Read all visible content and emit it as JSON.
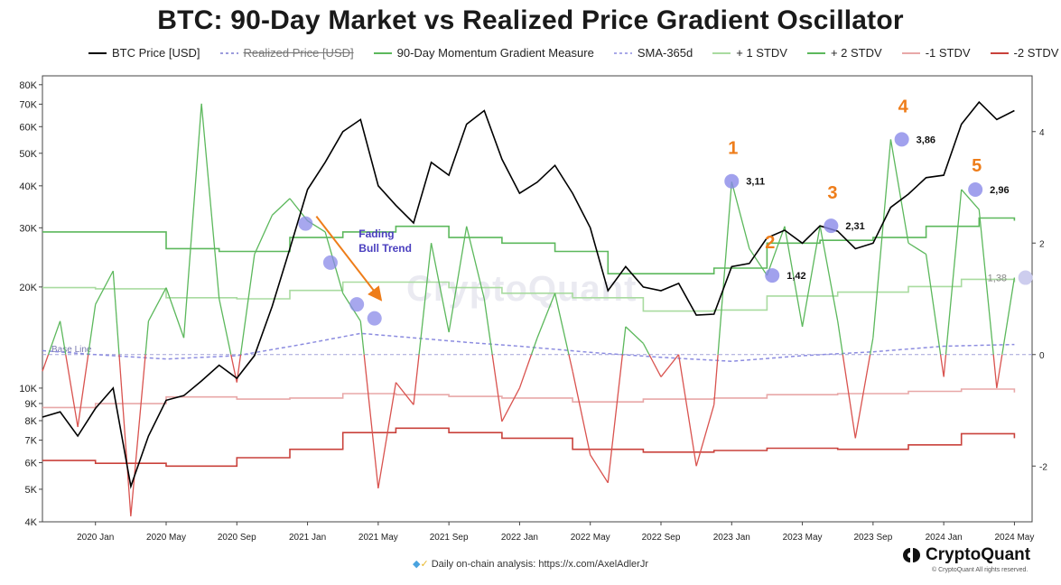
{
  "chart_data": {
    "type": "line",
    "title": "BTC: 90-Day Market vs Realized Price Gradient Oscillator",
    "legend": [
      {
        "name": "BTC Price [USD]",
        "color": "#000000",
        "style": "solid",
        "struck": false
      },
      {
        "name": "Realized Price [USD]",
        "color": "#7b7bd0",
        "style": "dashed",
        "struck": true
      },
      {
        "name": "90-Day Momentum Gradient Measure",
        "color": "#5cb85c",
        "style": "solid",
        "struck": false
      },
      {
        "name": "SMA-365d",
        "color": "#8c8ce0",
        "style": "dashed",
        "struck": false
      },
      {
        "name": "+ 1 STDV",
        "color": "#a9dba0",
        "style": "solid",
        "struck": false
      },
      {
        "name": "+ 2 STDV",
        "color": "#5cb85c",
        "style": "solid",
        "struck": false
      },
      {
        "name": "-1 STDV",
        "color": "#e8a8a8",
        "style": "solid",
        "struck": false
      },
      {
        "name": "-2 STDV",
        "color": "#c9413b",
        "style": "solid",
        "struck": false
      }
    ],
    "x_tick_labels": [
      "2020 Jan",
      "2020 May",
      "2020 Sep",
      "2021 Jan",
      "2021 May",
      "2021 Sep",
      "2022 Jan",
      "2022 May",
      "2022 Sep",
      "2023 Jan",
      "2023 May",
      "2023 Sep",
      "2024 Jan",
      "2024 May"
    ],
    "x_range": [
      "2019-10",
      "2024-06"
    ],
    "y_left": {
      "scale": "log",
      "range": [
        4000,
        85000
      ],
      "tick_labels": [
        "80K",
        "70K",
        "60K",
        "50K",
        "40K",
        "30K",
        "20K",
        "10K",
        "9K",
        "8K",
        "7K",
        "6K",
        "5K",
        "4K"
      ],
      "tick_values": [
        80000,
        70000,
        60000,
        50000,
        40000,
        30000,
        20000,
        10000,
        9000,
        8000,
        7000,
        6000,
        5000,
        4000
      ]
    },
    "y_right": {
      "range": [
        -3,
        5
      ],
      "tick_labels": [
        "4",
        "2",
        "0",
        "-2"
      ],
      "tick_values": [
        4,
        2,
        0,
        -2
      ]
    },
    "baseline_label": "Base Line",
    "btc_price": [
      [
        "2019-10",
        8200
      ],
      [
        "2019-11",
        8500
      ],
      [
        "2019-12",
        7200
      ],
      [
        "2020-01",
        8700
      ],
      [
        "2020-02",
        10000
      ],
      [
        "2020-03",
        5100
      ],
      [
        "2020-04",
        7200
      ],
      [
        "2020-05",
        9200
      ],
      [
        "2020-06",
        9500
      ],
      [
        "2020-07",
        10500
      ],
      [
        "2020-08",
        11700
      ],
      [
        "2020-09",
        10700
      ],
      [
        "2020-10",
        12500
      ],
      [
        "2020-11",
        17500
      ],
      [
        "2020-12",
        26000
      ],
      [
        "2021-01",
        39000
      ],
      [
        "2021-02",
        47000
      ],
      [
        "2021-03",
        58000
      ],
      [
        "2021-04",
        63000
      ],
      [
        "2021-05",
        40000
      ],
      [
        "2021-06",
        35000
      ],
      [
        "2021-07",
        31000
      ],
      [
        "2021-08",
        47000
      ],
      [
        "2021-09",
        43000
      ],
      [
        "2021-10",
        61000
      ],
      [
        "2021-11",
        67000
      ],
      [
        "2021-12",
        48000
      ],
      [
        "2022-01",
        38000
      ],
      [
        "2022-02",
        41000
      ],
      [
        "2022-03",
        46000
      ],
      [
        "2022-04",
        38000
      ],
      [
        "2022-05",
        30000
      ],
      [
        "2022-06",
        19500
      ],
      [
        "2022-07",
        23000
      ],
      [
        "2022-08",
        20000
      ],
      [
        "2022-09",
        19500
      ],
      [
        "2022-10",
        20500
      ],
      [
        "2022-11",
        16500
      ],
      [
        "2022-12",
        16600
      ],
      [
        "2023-01",
        23000
      ],
      [
        "2023-02",
        23500
      ],
      [
        "2023-03",
        28000
      ],
      [
        "2023-04",
        29500
      ],
      [
        "2023-05",
        27000
      ],
      [
        "2023-06",
        30400
      ],
      [
        "2023-07",
        29300
      ],
      [
        "2023-08",
        26000
      ],
      [
        "2023-09",
        27000
      ],
      [
        "2023-10",
        34500
      ],
      [
        "2023-11",
        37800
      ],
      [
        "2023-12",
        42300
      ],
      [
        "2024-01",
        43000
      ],
      [
        "2024-02",
        61000
      ],
      [
        "2024-03",
        71000
      ],
      [
        "2024-04",
        63000
      ],
      [
        "2024-05",
        67000
      ]
    ],
    "sma_365d": [
      [
        "2019-10",
        0.07
      ],
      [
        "2020-01",
        0.0
      ],
      [
        "2020-05",
        -0.08
      ],
      [
        "2020-09",
        -0.02
      ],
      [
        "2021-01",
        0.2
      ],
      [
        "2021-04",
        0.38
      ],
      [
        "2021-07",
        0.3
      ],
      [
        "2021-10",
        0.22
      ],
      [
        "2022-01",
        0.15
      ],
      [
        "2022-05",
        0.04
      ],
      [
        "2022-09",
        -0.05
      ],
      [
        "2023-01",
        -0.12
      ],
      [
        "2023-05",
        -0.02
      ],
      [
        "2023-09",
        0.05
      ],
      [
        "2024-01",
        0.15
      ],
      [
        "2024-05",
        0.18
      ]
    ],
    "plus_2_stdv": [
      [
        "2019-10",
        2.2
      ],
      [
        "2020-01",
        2.2
      ],
      [
        "2020-05",
        1.9
      ],
      [
        "2020-08",
        1.85
      ],
      [
        "2020-12",
        2.1
      ],
      [
        "2021-03",
        2.2
      ],
      [
        "2021-06",
        2.3
      ],
      [
        "2021-09",
        2.1
      ],
      [
        "2021-12",
        2.0
      ],
      [
        "2022-03",
        1.85
      ],
      [
        "2022-06",
        1.45
      ],
      [
        "2022-09",
        1.45
      ],
      [
        "2022-12",
        1.55
      ],
      [
        "2023-03",
        2.0
      ],
      [
        "2023-06",
        2.05
      ],
      [
        "2023-09",
        2.1
      ],
      [
        "2023-12",
        2.3
      ],
      [
        "2024-03",
        2.45
      ],
      [
        "2024-05",
        2.4
      ]
    ],
    "plus_1_stdv": [
      [
        "2019-10",
        1.2
      ],
      [
        "2020-01",
        1.18
      ],
      [
        "2020-05",
        1.02
      ],
      [
        "2020-09",
        1.0
      ],
      [
        "2020-12",
        1.15
      ],
      [
        "2021-03",
        1.3
      ],
      [
        "2021-06",
        1.3
      ],
      [
        "2021-09",
        1.2
      ],
      [
        "2021-12",
        1.1
      ],
      [
        "2022-04",
        1.02
      ],
      [
        "2022-08",
        0.78
      ],
      [
        "2022-12",
        0.8
      ],
      [
        "2023-03",
        1.05
      ],
      [
        "2023-07",
        1.12
      ],
      [
        "2023-11",
        1.22
      ],
      [
        "2024-02",
        1.35
      ],
      [
        "2024-05",
        1.3
      ]
    ],
    "minus_1_stdv": [
      [
        "2019-10",
        -0.95
      ],
      [
        "2020-01",
        -0.88
      ],
      [
        "2020-05",
        -0.76
      ],
      [
        "2020-09",
        -0.8
      ],
      [
        "2020-12",
        -0.78
      ],
      [
        "2021-03",
        -0.7
      ],
      [
        "2021-06",
        -0.72
      ],
      [
        "2021-09",
        -0.75
      ],
      [
        "2021-12",
        -0.78
      ],
      [
        "2022-04",
        -0.85
      ],
      [
        "2022-08",
        -0.8
      ],
      [
        "2022-12",
        -0.78
      ],
      [
        "2023-03",
        -0.72
      ],
      [
        "2023-07",
        -0.7
      ],
      [
        "2023-11",
        -0.66
      ],
      [
        "2024-02",
        -0.62
      ],
      [
        "2024-05",
        -0.68
      ]
    ],
    "minus_2_stdv": [
      [
        "2019-10",
        -1.9
      ],
      [
        "2020-01",
        -1.95
      ],
      [
        "2020-05",
        -2.0
      ],
      [
        "2020-09",
        -1.85
      ],
      [
        "2020-12",
        -1.7
      ],
      [
        "2021-03",
        -1.4
      ],
      [
        "2021-06",
        -1.32
      ],
      [
        "2021-09",
        -1.4
      ],
      [
        "2021-12",
        -1.5
      ],
      [
        "2022-04",
        -1.7
      ],
      [
        "2022-08",
        -1.75
      ],
      [
        "2022-12",
        -1.72
      ],
      [
        "2023-03",
        -1.68
      ],
      [
        "2023-07",
        -1.7
      ],
      [
        "2023-11",
        -1.62
      ],
      [
        "2024-02",
        -1.42
      ],
      [
        "2024-05",
        -1.5
      ]
    ],
    "momentum_gradient": [
      [
        "2019-10",
        -0.3
      ],
      [
        "2019-11",
        0.6
      ],
      [
        "2019-12",
        -1.3
      ],
      [
        "2020-01",
        0.9
      ],
      [
        "2020-02",
        1.5
      ],
      [
        "2020-03",
        -2.9
      ],
      [
        "2020-04",
        0.6
      ],
      [
        "2020-05",
        1.2
      ],
      [
        "2020-06",
        0.3
      ],
      [
        "2020-07",
        4.5
      ],
      [
        "2020-08",
        1.0
      ],
      [
        "2020-09",
        -0.5
      ],
      [
        "2020-10",
        1.8
      ],
      [
        "2020-11",
        2.5
      ],
      [
        "2020-12",
        2.8
      ],
      [
        "2021-01",
        2.4
      ],
      [
        "2021-02",
        2.2
      ],
      [
        "2021-03",
        1.1
      ],
      [
        "2021-04",
        0.6
      ],
      [
        "2021-05",
        -2.4
      ],
      [
        "2021-06",
        -0.5
      ],
      [
        "2021-07",
        -0.9
      ],
      [
        "2021-08",
        2.0
      ],
      [
        "2021-09",
        0.4
      ],
      [
        "2021-10",
        2.3
      ],
      [
        "2021-11",
        1.0
      ],
      [
        "2021-12",
        -1.2
      ],
      [
        "2022-01",
        -0.6
      ],
      [
        "2022-02",
        0.3
      ],
      [
        "2022-03",
        1.1
      ],
      [
        "2022-04",
        -0.3
      ],
      [
        "2022-05",
        -1.8
      ],
      [
        "2022-06",
        -2.3
      ],
      [
        "2022-07",
        0.5
      ],
      [
        "2022-08",
        0.2
      ],
      [
        "2022-09",
        -0.4
      ],
      [
        "2022-10",
        0.0
      ],
      [
        "2022-11",
        -2.0
      ],
      [
        "2022-12",
        -0.9
      ],
      [
        "2023-01",
        3.1
      ],
      [
        "2023-02",
        1.9
      ],
      [
        "2023-03",
        1.42
      ],
      [
        "2023-04",
        2.3
      ],
      [
        "2023-05",
        0.5
      ],
      [
        "2023-06",
        2.31
      ],
      [
        "2023-07",
        0.6
      ],
      [
        "2023-08",
        -1.5
      ],
      [
        "2023-09",
        0.3
      ],
      [
        "2023-10",
        3.86
      ],
      [
        "2023-11",
        2.0
      ],
      [
        "2023-12",
        1.8
      ],
      [
        "2024-01",
        -0.4
      ],
      [
        "2024-02",
        2.96
      ],
      [
        "2024-03",
        2.6
      ],
      [
        "2024-04",
        -0.6
      ],
      [
        "2024-05",
        1.38
      ]
    ],
    "fading_markers": [
      [
        "2020-12-28",
        2.35
      ],
      [
        "2021-02-10",
        1.65
      ],
      [
        "2021-03-25",
        0.9
      ],
      [
        "2021-04-25",
        0.65
      ]
    ],
    "numbered_markers": [
      {
        "label": "1",
        "value_label": "3,11",
        "x": "2023-01-01",
        "y": 3.11
      },
      {
        "label": "2",
        "value_label": "1,42",
        "x": "2023-03-10",
        "y": 1.42
      },
      {
        "label": "3",
        "value_label": "2,31",
        "x": "2023-06-20",
        "y": 2.31
      },
      {
        "label": "4",
        "value_label": "3,86",
        "x": "2023-10-20",
        "y": 3.86
      },
      {
        "label": "5",
        "value_label": "2,96",
        "x": "2024-02-25",
        "y": 2.96
      }
    ],
    "last_marker": {
      "value_label": "1,38",
      "x": "2024-05-20",
      "y": 1.38
    },
    "annotation": {
      "text_line1": "Fading",
      "text_line2": "Bull Trend"
    },
    "colors": {
      "accent_orange": "#ee7d1a",
      "marker_blue": "#8a8ae8",
      "annotation_blue": "#4a3fbf"
    }
  },
  "watermark_text": "CryptoQuant",
  "footer": {
    "text": "Daily on-chain analysis: https://x.com/AxelAdlerJr",
    "icon": "diamond-hands-icon"
  },
  "logo": {
    "text": "CryptoQuant",
    "copyright": "© CryptoQuant All rights reserved."
  }
}
